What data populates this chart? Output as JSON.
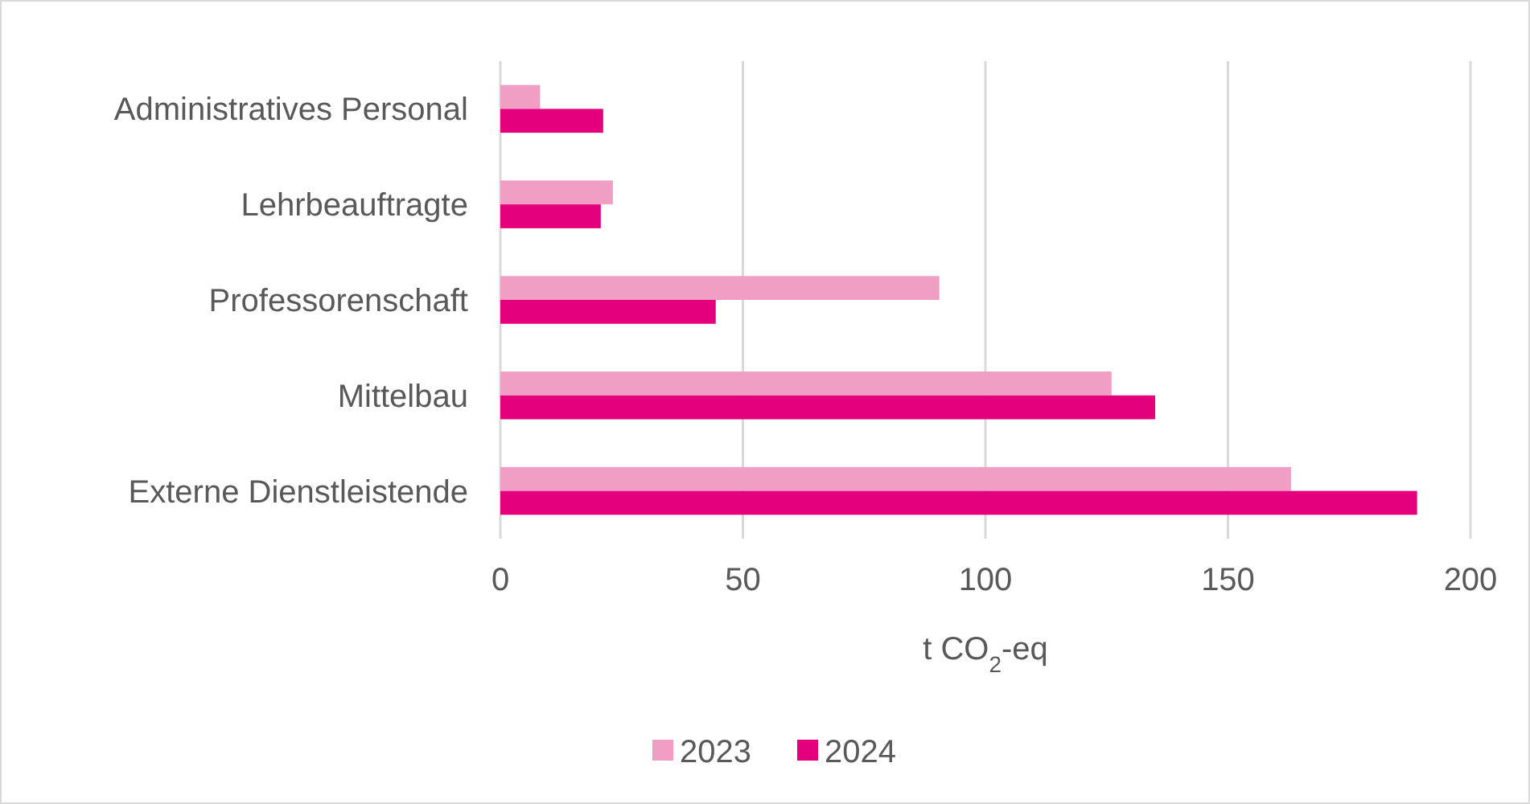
{
  "chart_data": {
    "type": "bar",
    "orientation": "horizontal",
    "xlabel": "t CO$_{2}$-eq",
    "categories": [
      "Administratives Personal",
      "Lehrbeauftragte",
      "Professorenschaft",
      "Mittelbau",
      "Externe Dienstleistende"
    ],
    "series": [
      {
        "name": "2023",
        "color": "#f09ec4",
        "values": [
          8.2,
          23.2,
          90.5,
          126,
          163
        ]
      },
      {
        "name": "2024",
        "color": "#e4007c",
        "values": [
          21.2,
          20.7,
          44.4,
          135,
          189
        ]
      }
    ],
    "xlim": [
      0,
      200
    ],
    "xticks": [
      0,
      50,
      100,
      150,
      200
    ],
    "grid": "x",
    "legend": "bottom"
  }
}
